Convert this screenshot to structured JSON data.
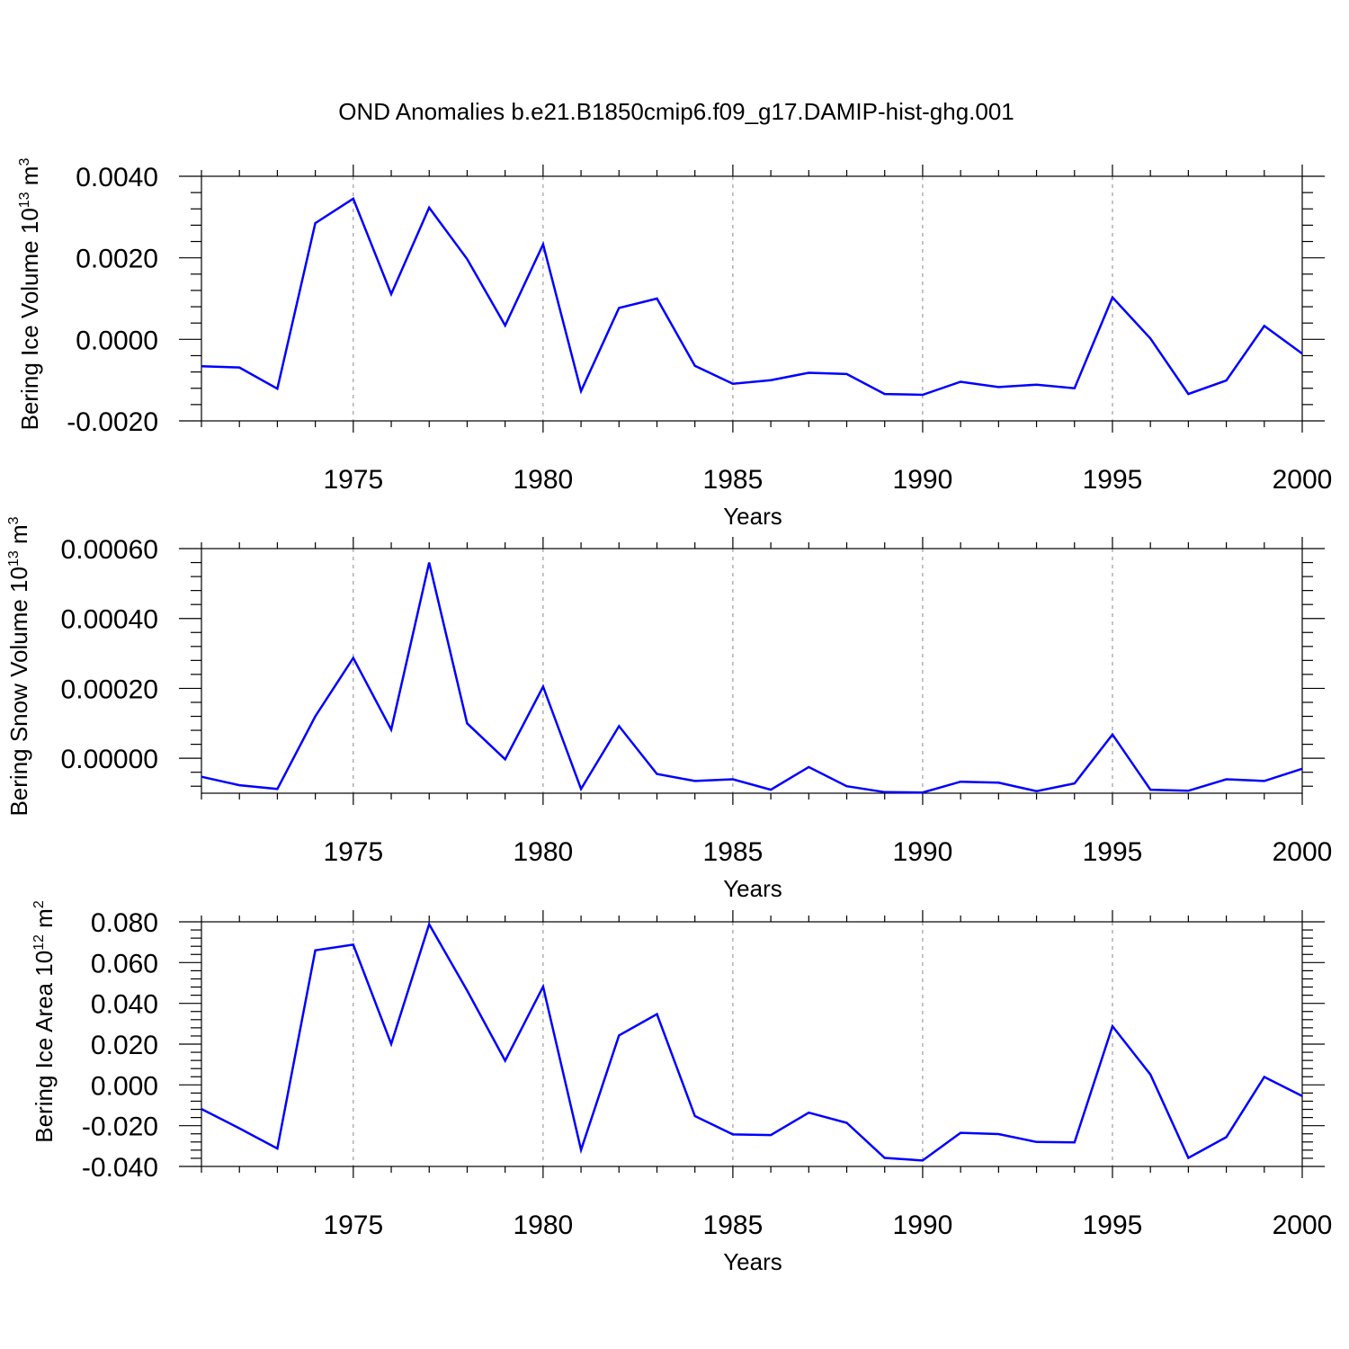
{
  "title": "OND Anomalies b.e21.B1850cmip6.f09_g17.DAMIP-hist-ghg.001",
  "line_color": "#0000ff",
  "chart_data": [
    {
      "type": "line",
      "ylabel": "Bering Ice Volume 10",
      "ylabel_exp": "13",
      "ylabel_unit": " m",
      "ylabel_unit_exp": "3",
      "xlabel": "Years",
      "xlim": [
        1971,
        2000
      ],
      "ylim": [
        -0.002,
        0.004
      ],
      "yticks": [
        -0.002,
        0.0,
        0.002,
        0.004
      ],
      "ytick_labels": [
        "-0.0020",
        "0.0000",
        "0.0020",
        "0.0040"
      ],
      "xticks": [
        1975,
        1980,
        1985,
        1990,
        1995,
        2000
      ],
      "xtick_labels": [
        "1975",
        "1980",
        "1985",
        "1990",
        "1995",
        "2000"
      ],
      "x": [
        1971,
        1972,
        1973,
        1974,
        1975,
        1976,
        1977,
        1978,
        1979,
        1980,
        1981,
        1982,
        1983,
        1984,
        1985,
        1986,
        1987,
        1988,
        1989,
        1990,
        1991,
        1992,
        1993,
        1994,
        1995,
        1996,
        1997,
        1998,
        1999,
        2000
      ],
      "values": [
        -0.00066,
        -0.00069,
        -0.00121,
        0.00285,
        0.00345,
        0.00111,
        0.00323,
        0.00197,
        0.00034,
        0.00233,
        -0.00127,
        0.00077,
        0.001,
        -0.00065,
        -0.00109,
        -0.001,
        -0.00082,
        -0.00085,
        -0.00134,
        -0.00136,
        -0.00104,
        -0.00117,
        -0.00111,
        -0.0012,
        0.00103,
        2e-05,
        -0.00134,
        -0.00101,
        0.00033,
        -0.00035
      ]
    },
    {
      "type": "line",
      "ylabel": "Bering Snow Volume 10",
      "ylabel_exp": "13",
      "ylabel_unit": " m",
      "ylabel_unit_exp": "3",
      "xlabel": "Years",
      "xlim": [
        1971,
        2000
      ],
      "ylim": [
        -0.0001,
        0.0006
      ],
      "yticks": [
        0.0,
        0.0002,
        0.0004,
        0.0006
      ],
      "ytick_labels": [
        "0.00000",
        "0.00020",
        "0.00040",
        "0.00060"
      ],
      "xticks": [
        1975,
        1980,
        1985,
        1990,
        1995,
        2000
      ],
      "xtick_labels": [
        "1975",
        "1980",
        "1985",
        "1990",
        "1995",
        "2000"
      ],
      "x": [
        1971,
        1972,
        1973,
        1974,
        1975,
        1976,
        1977,
        1978,
        1979,
        1980,
        1981,
        1982,
        1983,
        1984,
        1985,
        1986,
        1987,
        1988,
        1989,
        1990,
        1991,
        1992,
        1993,
        1994,
        1995,
        1996,
        1997,
        1998,
        1999,
        2000
      ],
      "values": [
        -5.3e-05,
        -7.7e-05,
        -8.8e-05,
        0.00012,
        0.000287,
        8.2e-05,
        0.00056,
        0.0001,
        -3e-06,
        0.000205,
        -8.8e-05,
        9.2e-05,
        -4.5e-05,
        -6.5e-05,
        -6e-05,
        -9e-05,
        -2.5e-05,
        -8e-05,
        -9.7e-05,
        -9.8e-05,
        -6.7e-05,
        -7e-05,
        -9.4e-05,
        -7.2e-05,
        6.8e-05,
        -9e-05,
        -9.3e-05,
        -6e-05,
        -6.5e-05,
        -3e-05
      ]
    },
    {
      "type": "line",
      "ylabel": "Bering Ice Area 10",
      "ylabel_exp": "12",
      "ylabel_unit": " m",
      "ylabel_unit_exp": "2",
      "xlabel": "Years",
      "xlim": [
        1971,
        2000
      ],
      "ylim": [
        -0.04,
        0.08
      ],
      "yticks": [
        -0.04,
        -0.02,
        0.0,
        0.02,
        0.04,
        0.06,
        0.08
      ],
      "ytick_labels": [
        "-0.040",
        "-0.020",
        "0.000",
        "0.020",
        "0.040",
        "0.060",
        "0.080"
      ],
      "xticks": [
        1975,
        1980,
        1985,
        1990,
        1995,
        2000
      ],
      "xtick_labels": [
        "1975",
        "1980",
        "1985",
        "1990",
        "1995",
        "2000"
      ],
      "x": [
        1971,
        1972,
        1973,
        1974,
        1975,
        1976,
        1977,
        1978,
        1979,
        1980,
        1981,
        1982,
        1983,
        1984,
        1985,
        1986,
        1987,
        1988,
        1989,
        1990,
        1991,
        1992,
        1993,
        1994,
        1995,
        1996,
        1997,
        1998,
        1999,
        2000
      ],
      "values": [
        -0.0118,
        -0.0213,
        -0.0312,
        0.066,
        0.0688,
        0.0201,
        0.0788,
        0.0463,
        0.0119,
        0.0482,
        -0.0319,
        0.0243,
        0.0347,
        -0.0153,
        -0.0243,
        -0.0246,
        -0.0136,
        -0.0186,
        -0.0358,
        -0.0371,
        -0.0235,
        -0.0241,
        -0.028,
        -0.0282,
        0.0288,
        0.0051,
        -0.0358,
        -0.0256,
        0.0039,
        -0.0055
      ]
    }
  ]
}
